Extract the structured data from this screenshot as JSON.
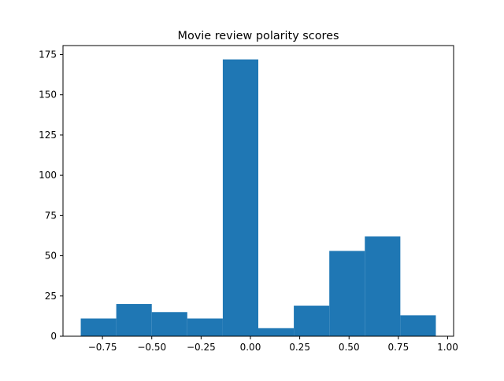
{
  "chart_data": {
    "type": "bar",
    "title": "Movie review polarity scores",
    "xlabel": "",
    "ylabel": "",
    "bin_edges": [
      -0.86,
      -0.68,
      -0.5,
      -0.32,
      -0.14,
      0.04,
      0.22,
      0.4,
      0.58,
      0.76,
      0.94
    ],
    "values": [
      11,
      20,
      15,
      11,
      172,
      5,
      19,
      53,
      62,
      13
    ],
    "xlim": [
      -0.95,
      1.03
    ],
    "ylim": [
      0,
      180.6
    ],
    "xticks": [
      {
        "value": -0.75,
        "label": "−0.75"
      },
      {
        "value": -0.5,
        "label": "−0.50"
      },
      {
        "value": -0.25,
        "label": "−0.25"
      },
      {
        "value": 0,
        "label": "0.00"
      },
      {
        "value": 0.25,
        "label": "0.25"
      },
      {
        "value": 0.5,
        "label": "0.50"
      },
      {
        "value": 0.75,
        "label": "0.75"
      },
      {
        "value": 1,
        "label": "1.00"
      }
    ],
    "yticks": [
      {
        "value": 0,
        "label": "0"
      },
      {
        "value": 25,
        "label": "25"
      },
      {
        "value": 50,
        "label": "50"
      },
      {
        "value": 75,
        "label": "75"
      },
      {
        "value": 100,
        "label": "100"
      },
      {
        "value": 125,
        "label": "125"
      },
      {
        "value": 150,
        "label": "150"
      },
      {
        "value": 175,
        "label": "175"
      }
    ],
    "grid": false,
    "legend": "none",
    "bar_color": "#1f77b4"
  }
}
